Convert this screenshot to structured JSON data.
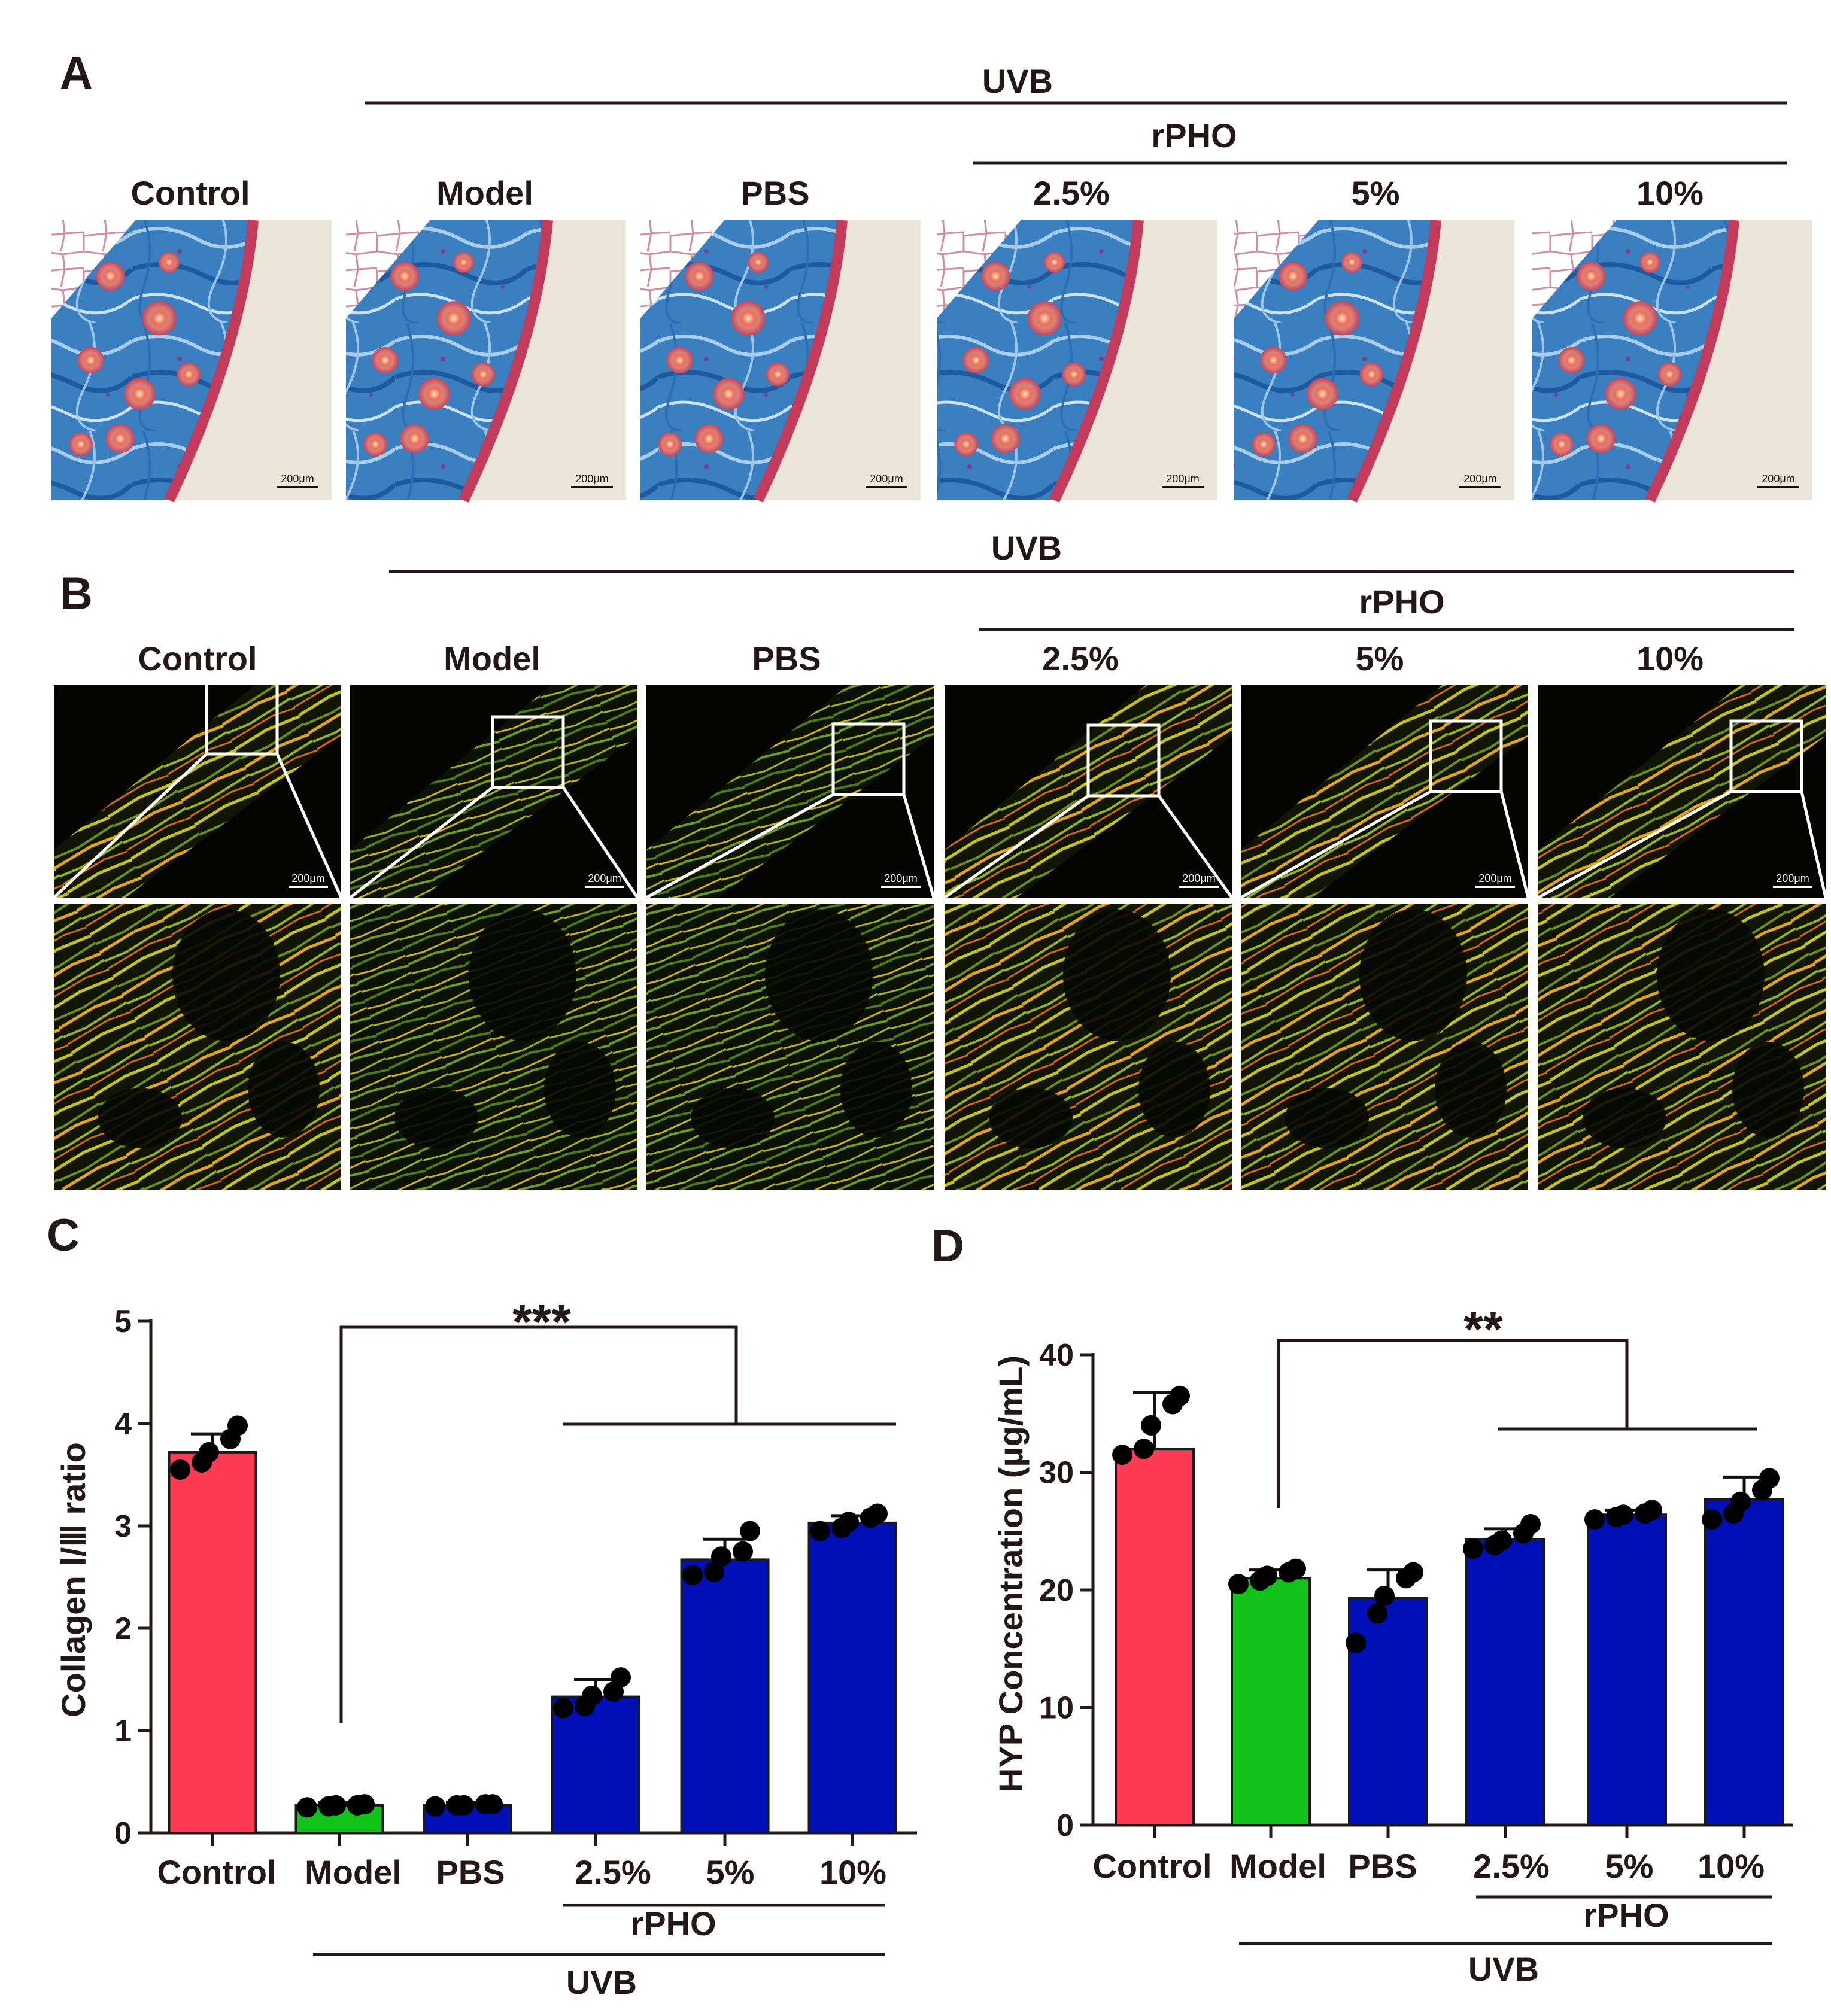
{
  "panel_labels": [
    "A",
    "B",
    "C",
    "D"
  ],
  "groups": {
    "uvb": "UVB",
    "rpho": "rPHO",
    "labels": [
      "Control",
      "Model",
      "PBS",
      "2.5%",
      "5%",
      "10%"
    ]
  },
  "scale_bar": "200μm",
  "colors": {
    "control": "#ff3a55",
    "model": "#10c21a",
    "treated": "#0010b8",
    "dot": "#000000"
  },
  "chart_data": [
    {
      "type": "bar",
      "panel": "C",
      "categories": [
        "Control",
        "Model",
        "PBS",
        "2.5%",
        "5%",
        "10%"
      ],
      "values": [
        3.72,
        0.27,
        0.27,
        1.33,
        2.67,
        3.03
      ],
      "errors": [
        0.18,
        0.03,
        0.03,
        0.17,
        0.2,
        0.07
      ],
      "points": [
        [
          3.55,
          3.62,
          3.72,
          3.85,
          3.98
        ],
        [
          0.25,
          0.26,
          0.27,
          0.27,
          0.28
        ],
        [
          0.26,
          0.27,
          0.27,
          0.28,
          0.28
        ],
        [
          1.22,
          1.24,
          1.34,
          1.38,
          1.52
        ],
        [
          2.52,
          2.55,
          2.7,
          2.75,
          2.95
        ],
        [
          2.95,
          2.98,
          3.04,
          3.08,
          3.12
        ]
      ],
      "ylabel": "Collagen Ⅰ/Ⅲ ratio",
      "ylim": [
        0,
        5
      ],
      "yticks": [
        0,
        1,
        2,
        3,
        4,
        5
      ],
      "significance": "***"
    },
    {
      "type": "bar",
      "panel": "D",
      "categories": [
        "Control",
        "Model",
        "PBS",
        "2.5%",
        "5%",
        "10%"
      ],
      "values": [
        32.0,
        21.0,
        19.3,
        24.3,
        26.4,
        27.7
      ],
      "errors": [
        4.8,
        0.7,
        2.4,
        0.9,
        0.4,
        1.9
      ],
      "points": [
        [
          31.5,
          32.0,
          34.0,
          35.8,
          36.5
        ],
        [
          20.5,
          20.8,
          21.2,
          21.5,
          21.8
        ],
        [
          15.5,
          18.0,
          19.5,
          21.0,
          21.5
        ],
        [
          23.5,
          23.8,
          24.2,
          24.8,
          25.6
        ],
        [
          26.0,
          26.2,
          26.4,
          26.5,
          26.8
        ],
        [
          26.0,
          26.5,
          27.5,
          28.5,
          29.5
        ]
      ],
      "ylabel": "HYP Concentration (μg/mL)",
      "ylim": [
        0,
        40
      ],
      "yticks": [
        0,
        10,
        20,
        30,
        40
      ],
      "significance": "**"
    }
  ]
}
